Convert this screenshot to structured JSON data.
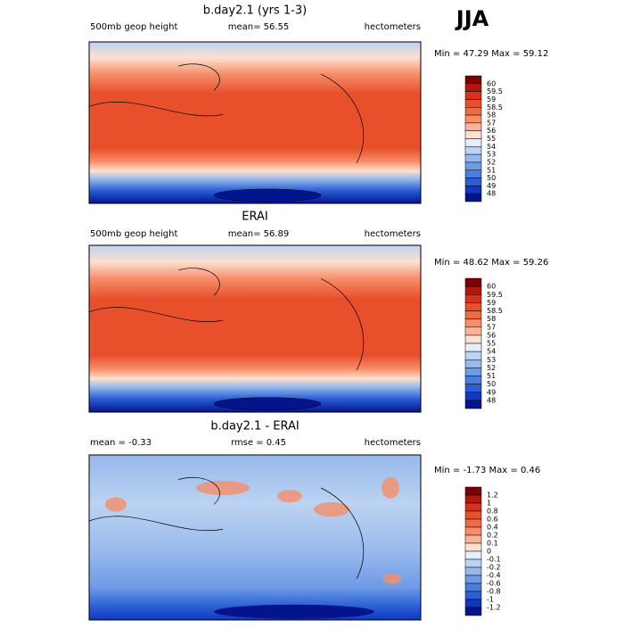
{
  "season": "JJA",
  "panels": [
    {
      "title": "b.day2.1 (yrs 1-3)",
      "left": "500mb geop height",
      "center": "mean=  56.55",
      "right": "hectometers",
      "minmax": "Min =  47.29 Max =  59.12",
      "colorbar": {
        "labels": [
          "60",
          "59.5",
          "59",
          "58.5",
          "58",
          "57",
          "56",
          "55",
          "54",
          "53",
          "52",
          "51",
          "50",
          "49",
          "48"
        ]
      }
    },
    {
      "title": "ERAI",
      "left": "500mb geop height",
      "center": "mean=  56.89",
      "right": "hectometers",
      "minmax": "Min =  48.62 Max =  59.26",
      "colorbar": {
        "labels": [
          "60",
          "59.5",
          "59",
          "58.5",
          "58",
          "57",
          "56",
          "55",
          "54",
          "53",
          "52",
          "51",
          "50",
          "49",
          "48"
        ]
      }
    },
    {
      "title": "b.day2.1 - ERAI",
      "left": "mean =  -0.33",
      "center": "rmse =   0.45",
      "right": "hectometers",
      "minmax": "Min =  -1.73 Max =   0.46",
      "colorbar": {
        "labels": [
          "1.2",
          "1",
          "0.8",
          "0.6",
          "0.4",
          "0.2",
          "0.1",
          "0",
          "-0.1",
          "-0.2",
          "-0.4",
          "-0.6",
          "-0.8",
          "-1",
          "-1.2"
        ]
      }
    }
  ],
  "colors": [
    "#7f0000",
    "#b0170d",
    "#d9301a",
    "#e8502c",
    "#f06a40",
    "#f68d68",
    "#fab398",
    "#fde0d0",
    "#e6eefa",
    "#bcd3f2",
    "#96b8ec",
    "#6f9be6",
    "#4a7ede",
    "#2a5fd6",
    "#1236c0",
    "#04148c"
  ]
}
